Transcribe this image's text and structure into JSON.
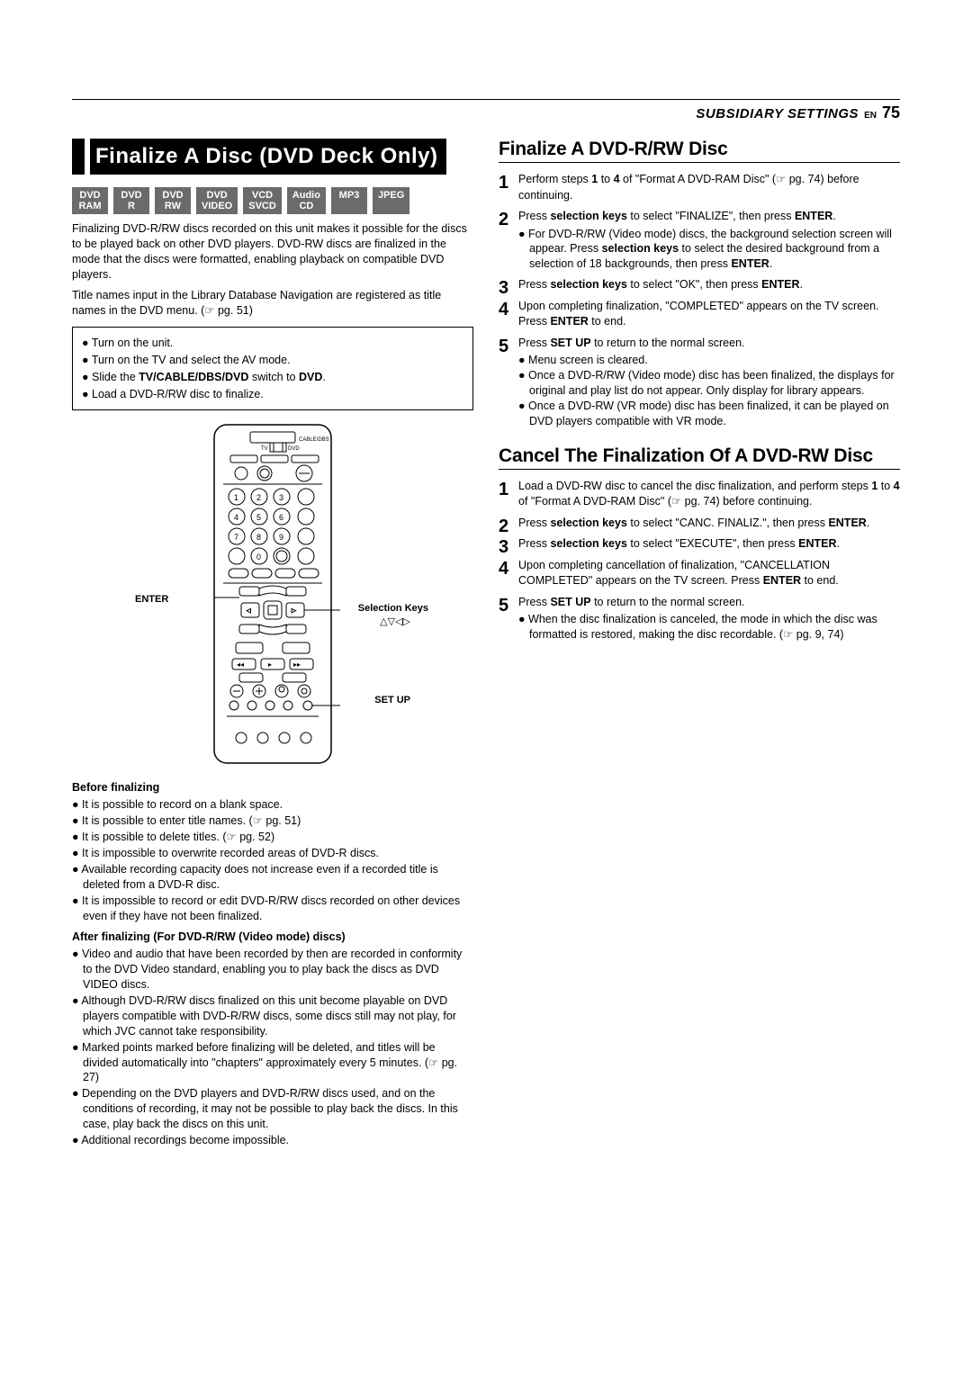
{
  "header": {
    "subsidiary": "SUBSIDIARY SETTINGS",
    "en": "EN",
    "page": "75"
  },
  "left": {
    "title": "Finalize A Disc (DVD Deck Only)",
    "badges": [
      {
        "l1": "DVD",
        "l2": "RAM"
      },
      {
        "l1": "DVD",
        "l2": "R"
      },
      {
        "l1": "DVD",
        "l2": "RW"
      },
      {
        "l1": "DVD",
        "l2": "VIDEO"
      },
      {
        "l1": "VCD",
        "l2": "SVCD"
      },
      {
        "l1": "Audio",
        "l2": "CD"
      },
      {
        "l1": "MP3",
        "l2": ""
      },
      {
        "l1": "JPEG",
        "l2": ""
      }
    ],
    "intro1": "Finalizing DVD-R/RW discs recorded on this unit makes it possible for the discs to be played back on other DVD players. DVD-RW discs are finalized in the mode that the discs were formatted, enabling playback on compatible DVD players.",
    "intro2": "Title names input in the Library Database Navigation are registered as title names in the DVD menu. (☞ pg. 51)",
    "prep": [
      "Turn on the unit.",
      "Turn on the TV and select the AV mode.",
      "Slide the TV/CABLE/DBS/DVD switch to DVD.",
      "Load a DVD-R/RW disc to finalize."
    ],
    "remote": {
      "enter": "ENTER",
      "selkeys": "Selection Keys",
      "arrows": "△▽◁▷",
      "setup": "SET UP",
      "cable": "CABLE/DBS",
      "tv": "TV",
      "dvd": "DVD"
    },
    "beforeHead": "Before finalizing",
    "before": [
      "It is possible to record on a blank space.",
      "It is possible to enter title names. (☞ pg. 51)",
      "It is possible to delete titles. (☞ pg. 52)",
      "It is impossible to overwrite recorded areas of DVD-R discs.",
      "Available recording capacity does not increase even if a recorded title is deleted from a DVD-R disc.",
      "It is impossible to record or edit DVD-R/RW discs recorded on other devices even if they have not been finalized."
    ],
    "afterHead": "After finalizing (For DVD-R/RW (Video mode) discs)",
    "after": [
      "Video and audio that have been recorded by then are recorded in conformity to the DVD Video standard, enabling you to play back the discs as DVD VIDEO discs.",
      "Although DVD-R/RW discs finalized on this unit become playable on DVD players compatible with DVD-R/RW discs, some discs still may not play, for which JVC cannot take responsibility.",
      "Marked points marked before finalizing will be deleted, and titles will be divided automatically into \"chapters\" approximately every 5 minutes. (☞ pg. 27)",
      "Depending on the DVD players and DVD-R/RW discs used, and on the conditions of recording, it may not be possible to play back the discs. In this case, play back the discs on this unit.",
      "Additional recordings become impossible."
    ]
  },
  "right": {
    "finalize": {
      "title": "Finalize A DVD-R/RW Disc",
      "s1": "Perform steps 1 to 4 of \"Format A DVD-RAM Disc\" (☞ pg. 74) before continuing.",
      "s2": "Press selection keys to select \"FINALIZE\", then press ENTER.",
      "s2b": "For DVD-R/RW (Video mode) discs, the background selection screen will appear. Press selection keys to select the desired background from a selection of 18 backgrounds, then press ENTER.",
      "s3": "Press selection keys to select \"OK\", then press ENTER.",
      "s4": "Upon completing finalization, \"COMPLETED\" appears on the TV screen. Press ENTER to end.",
      "s5": "Press SET UP to return to the normal screen.",
      "s5b1": "Menu screen is cleared.",
      "s5b2": "Once a DVD-R/RW (Video mode) disc has been finalized, the displays for original and play list do not appear. Only display for library appears.",
      "s5b3": "Once a DVD-RW (VR mode) disc has been finalized, it can be played on DVD players compatible with VR mode."
    },
    "cancel": {
      "title": "Cancel The Finalization Of A DVD-RW Disc",
      "s1": "Load a DVD-RW disc to cancel the disc finalization, and perform steps 1 to 4 of \"Format A DVD-RAM Disc\" (☞ pg. 74) before continuing.",
      "s2": "Press selection keys to select \"CANC. FINALIZ.\", then press ENTER.",
      "s3": "Press selection keys to select \"EXECUTE\", then press ENTER.",
      "s4": "Upon completing cancellation of finalization, \"CANCELLATION COMPLETED\" appears on the TV screen. Press ENTER to end.",
      "s5": "Press SET UP to return to the normal screen.",
      "s5b": "When the disc finalization is canceled, the mode in which the disc was formatted is restored, making the disc recordable. (☞ pg. 9, 74)"
    }
  }
}
